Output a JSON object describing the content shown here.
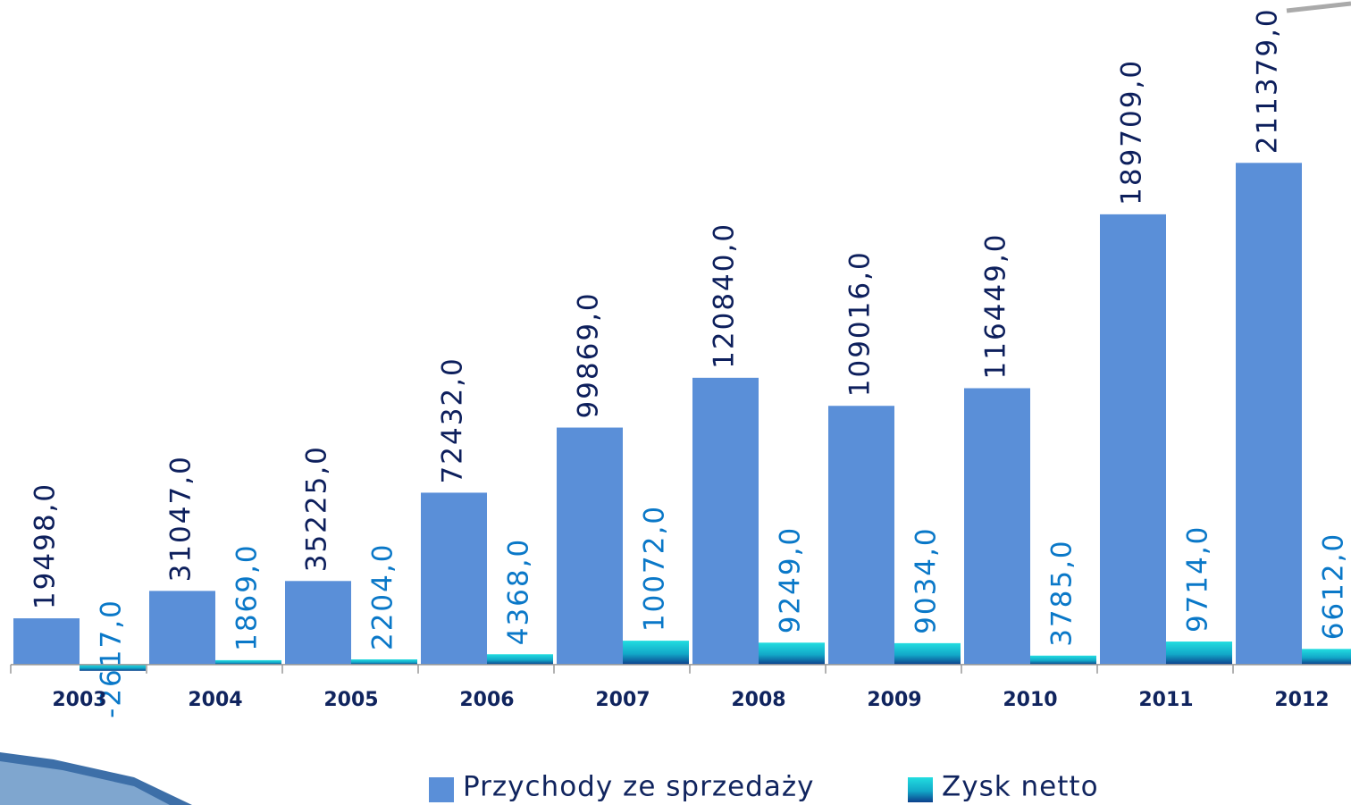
{
  "chart_data": {
    "type": "bar",
    "categories": [
      "2003",
      "2004",
      "2005",
      "2006",
      "2007",
      "2008",
      "2009",
      "2010",
      "2011",
      "2012"
    ],
    "series": [
      {
        "name": "Przychody ze sprzedaży",
        "color": "#5a8fd8",
        "values": [
          19498,
          31047,
          35225,
          72432,
          99869,
          120840,
          109016,
          116449,
          189709,
          211379
        ],
        "value_labels": [
          "19498,0",
          "31047,0",
          "35225,0",
          "72432,0",
          "99869,0",
          "120840,0",
          "109016,0",
          "116449,0",
          "189709,0",
          "211379,0"
        ]
      },
      {
        "name": "Zysk netto",
        "color": "#1fd3dc",
        "values": [
          -2617,
          1869,
          2204,
          4368,
          10072,
          9249,
          9034,
          3785,
          9714,
          6612
        ],
        "value_labels": [
          "-2617,0",
          "1869,0",
          "2204,0",
          "4368,0",
          "10072,0",
          "9249,0",
          "9034,0",
          "3785,0",
          "9714,0",
          "6612,0"
        ]
      }
    ],
    "ylim": [
      -20000,
      280000
    ]
  }
}
